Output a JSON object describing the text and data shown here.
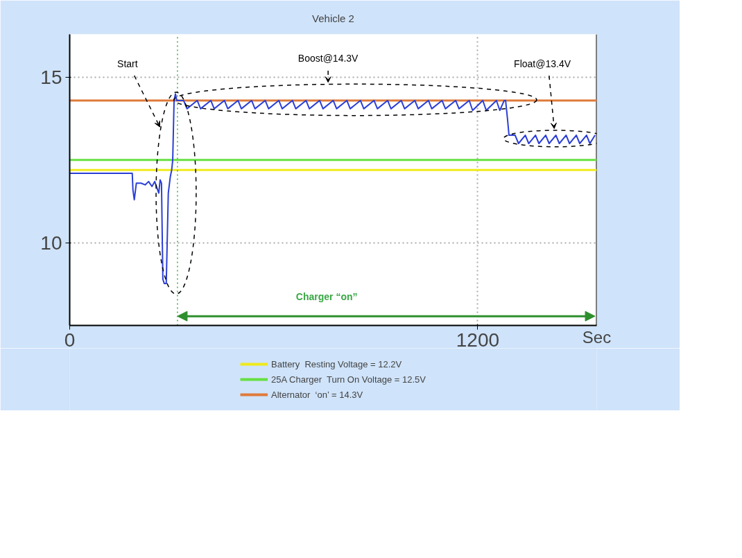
{
  "chart_data": {
    "type": "line",
    "title": "Vehicle 2",
    "xlabel": "Sec",
    "xlim": [
      0,
      1550
    ],
    "ylim": [
      7.5,
      16.3
    ],
    "xticks": [
      0,
      1200
    ],
    "yticks": [
      10,
      15
    ],
    "grid": true,
    "legend": "bottom",
    "line_style": "solid",
    "marker": "none",
    "series": [
      {
        "color": "#2b3fd6",
        "x": [
          0,
          184,
          186,
          190,
          196,
          210,
          222,
          232,
          242,
          250,
          262,
          266,
          270,
          274,
          278,
          284,
          290,
          296,
          300,
          303,
          307,
          311,
          315,
          335,
          345,
          375,
          385,
          415,
          425,
          455,
          465,
          495,
          505,
          535,
          545,
          575,
          585,
          615,
          625,
          655,
          665,
          695,
          705,
          735,
          745,
          775,
          785,
          815,
          825,
          855,
          865,
          895,
          905,
          935,
          945,
          975,
          985,
          1015,
          1025,
          1055,
          1065,
          1095,
          1105,
          1135,
          1145,
          1175,
          1185,
          1215,
          1225,
          1255,
          1265,
          1278,
          1282,
          1288,
          1292,
          1310,
          1320,
          1340,
          1350,
          1370,
          1380,
          1400,
          1410,
          1430,
          1440,
          1460,
          1470,
          1490,
          1500,
          1520,
          1530,
          1545
        ],
        "values": [
          12.1,
          12.1,
          11.6,
          11.3,
          11.8,
          11.8,
          11.75,
          11.85,
          11.7,
          11.85,
          11.5,
          11.9,
          11.8,
          8.9,
          8.77,
          8.77,
          11.5,
          12.0,
          12.2,
          12.5,
          14.3,
          14.5,
          14.3,
          14.3,
          14.05,
          14.3,
          14.05,
          14.3,
          14.05,
          14.3,
          14.05,
          14.3,
          14.05,
          14.3,
          14.05,
          14.3,
          14.05,
          14.3,
          14.05,
          14.3,
          14.05,
          14.3,
          14.05,
          14.3,
          14.05,
          14.3,
          14.05,
          14.3,
          14.05,
          14.3,
          14.05,
          14.3,
          14.05,
          14.3,
          14.05,
          14.3,
          14.05,
          14.3,
          14.05,
          14.3,
          14.05,
          14.3,
          14.05,
          14.3,
          14.05,
          14.3,
          14.0,
          14.3,
          14.0,
          14.3,
          14.0,
          14.3,
          14.3,
          13.7,
          13.25,
          13.25,
          13.0,
          13.25,
          13.0,
          13.25,
          13.0,
          13.25,
          13.0,
          13.25,
          13.0,
          13.25,
          13.0,
          13.25,
          13.0,
          13.25,
          13.0,
          13.25
        ]
      }
    ],
    "ref_lines": [
      {
        "axis": "y",
        "value": 12.2,
        "label": "Battery  Resting Voltage = 12.2V",
        "color": "#f0ea1a"
      },
      {
        "axis": "y",
        "value": 12.5,
        "label": "25A Charger  Turn On Voltage = 12.5V",
        "color": "#66e040"
      },
      {
        "axis": "y",
        "value": 14.3,
        "label": "Alternator  ‘on’ = 14.3V",
        "color": "#e07a3a"
      },
      {
        "axis": "x",
        "value": 317,
        "color": "#39a845",
        "line_style": "dotted"
      }
    ],
    "annotations": [
      "Start",
      "Boost@14.3V",
      "Float@13.4V",
      "Charger  “on”"
    ]
  }
}
